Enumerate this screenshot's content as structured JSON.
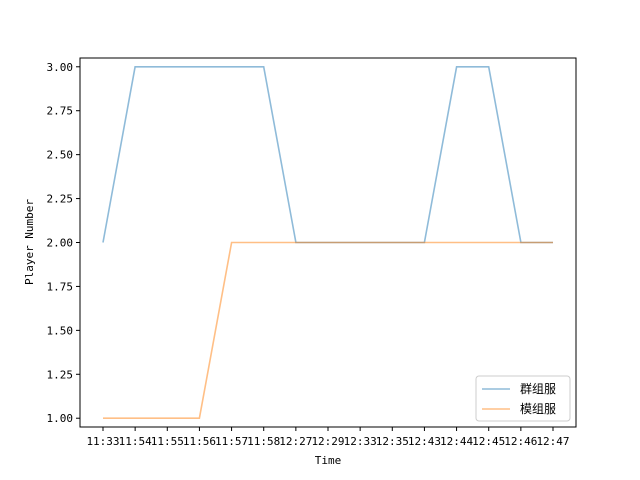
{
  "chart_data": {
    "type": "line",
    "xlabel": "Time",
    "ylabel": "Player Number",
    "categories": [
      "11:33",
      "11:54",
      "11:55",
      "11:56",
      "11:57",
      "11:58",
      "12:27",
      "12:29",
      "12:33",
      "12:35",
      "12:43",
      "12:44",
      "12:45",
      "12:46",
      "12:47"
    ],
    "ylim": [
      0.95,
      3.05
    ],
    "yticks": [
      "1.00",
      "1.25",
      "1.50",
      "1.75",
      "2.00",
      "2.25",
      "2.50",
      "2.75",
      "3.00"
    ],
    "legend_position": "bottom-right",
    "series": [
      {
        "name": "群组服",
        "color": "#1f77b4",
        "values": [
          2,
          3,
          3,
          3,
          3,
          3,
          2,
          2,
          2,
          2,
          2,
          3,
          3,
          2,
          2
        ]
      },
      {
        "name": "模组服",
        "color": "#ff7f0e",
        "values": [
          1,
          1,
          1,
          1,
          2,
          2,
          2,
          2,
          2,
          2,
          2,
          2,
          2,
          2,
          2
        ]
      }
    ]
  }
}
